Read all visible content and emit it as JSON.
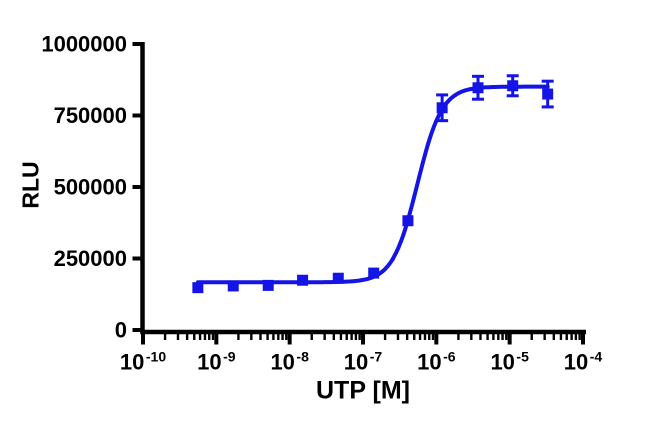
{
  "figure": {
    "background": "#ffffff",
    "axis_color": "#000000"
  },
  "chart_data": {
    "type": "scatter",
    "subtype": "sigmoidal-dose-response-fit",
    "title": "",
    "xlabel": "UTP [M]",
    "ylabel": "RLU",
    "x_scale": "log10",
    "x_tick_exponents": [
      -10,
      -9,
      -8,
      -7,
      -6,
      -5,
      -4
    ],
    "x_minor_ticks": "log-decade-2-to-9",
    "xlim_log10": [
      -10,
      -4
    ],
    "ylim": [
      0,
      1000000
    ],
    "y_ticks": [
      0,
      250000,
      500000,
      750000,
      1000000
    ],
    "grid": false,
    "legend_position": "none",
    "series": [
      {
        "name": "UTP",
        "color": "#1414e6",
        "marker": "square",
        "points": [
          {
            "conc_m": 5.6e-10,
            "rlu": 148000,
            "err": null
          },
          {
            "conc_m": 1.7e-09,
            "rlu": 154000,
            "err": null
          },
          {
            "conc_m": 5.1e-09,
            "rlu": 156000,
            "err": null
          },
          {
            "conc_m": 1.5e-08,
            "rlu": 174000,
            "err": null
          },
          {
            "conc_m": 4.6e-08,
            "rlu": 181000,
            "err": null
          },
          {
            "conc_m": 1.4e-07,
            "rlu": 199000,
            "err": null
          },
          {
            "conc_m": 4.1e-07,
            "rlu": 382000,
            "err": null
          },
          {
            "conc_m": 1.2e-06,
            "rlu": 777000,
            "err": 45000
          },
          {
            "conc_m": 3.7e-06,
            "rlu": 847000,
            "err": 40000
          },
          {
            "conc_m": 1.1e-05,
            "rlu": 854000,
            "err": 35000
          },
          {
            "conc_m": 3.3e-05,
            "rlu": 825000,
            "err": 45000
          }
        ],
        "fit_curve": {
          "model": "4PL",
          "bottom": 167000,
          "top": 851000,
          "ec50": 5.5e-07,
          "hill": 2.6
        }
      }
    ]
  }
}
